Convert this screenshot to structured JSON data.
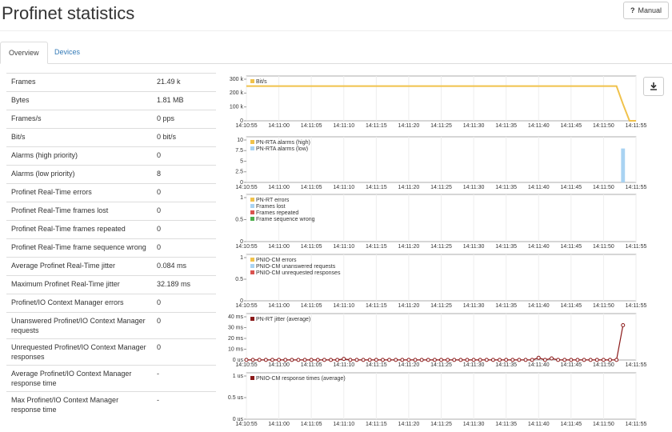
{
  "header": {
    "title": "Profinet statistics",
    "icon": "?",
    "button": "Manual"
  },
  "tabs": [
    "Overview",
    "Devices"
  ],
  "table": {
    "rows": [
      [
        "Frames",
        "21.49 k"
      ],
      [
        "Bytes",
        "1.81 MB"
      ],
      [
        "Frames/s",
        "0 pps"
      ],
      [
        "Bit/s",
        "0 bit/s"
      ],
      [
        "Alarms (high priority)",
        "0"
      ],
      [
        "Alarms (low priority)",
        "8"
      ],
      [
        "Profinet Real-Time errors",
        "0"
      ],
      [
        "Profinet Real-Time frames lost",
        "0"
      ],
      [
        "Profinet Real-Time frames repeated",
        "0"
      ],
      [
        "Profinet Real-Time frame sequence wrong",
        "0"
      ],
      [
        "Average Profinet Real-Time jitter",
        "0.084 ms"
      ],
      [
        "Maximum Profinet Real-Time jitter",
        "32.189 ms"
      ],
      [
        "Profinet/IO Context Manager errors",
        "0"
      ],
      [
        "Unanswered Profinet/IO Context Manager requests",
        "0"
      ],
      [
        "Unrequested Profinet/IO Context Manager responses",
        "0"
      ],
      [
        "Average Profinet/IO Context Manager response time",
        "-"
      ],
      [
        "Max Profinet/IO Context Manager response time",
        "-"
      ]
    ]
  },
  "time_axis": [
    "14:10:55",
    "14:11:00",
    "14:11:05",
    "14:11:10",
    "14:11:15",
    "14:11:20",
    "14:11:25",
    "14:11:30",
    "14:11:35",
    "14:11:40",
    "14:11:45",
    "14:11:50",
    "14:11:55"
  ],
  "charts": [
    {
      "type": "line",
      "ylim": [
        0,
        300000
      ],
      "yticks": [
        {
          "value": 0,
          "label": "0"
        },
        {
          "value": 100000,
          "label": "100 k"
        },
        {
          "value": 200000,
          "label": "200 k"
        },
        {
          "value": 300000,
          "label": "300 k"
        }
      ],
      "series": [
        {
          "name": "Bit/s",
          "color": "#f0c24b",
          "values": [
            250000,
            250000,
            250000,
            250000,
            250000,
            250000,
            250000,
            250000,
            250000,
            250000,
            250000,
            250000,
            250000,
            250000,
            250000,
            250000,
            250000,
            250000,
            250000,
            250000,
            250000,
            250000,
            250000,
            250000,
            250000,
            250000,
            250000,
            250000,
            250000,
            250000,
            250000,
            250000,
            250000,
            250000,
            250000,
            250000,
            250000,
            250000,
            250000,
            250000,
            250000,
            250000,
            250000,
            250000,
            250000,
            250000,
            250000,
            250000,
            250000,
            250000,
            250000,
            250000,
            250000,
            250000,
            250000,
            250000,
            250000,
            250000,
            120000,
            0,
            0
          ]
        }
      ]
    },
    {
      "type": "bar",
      "ylim": [
        0,
        10
      ],
      "yticks": [
        0,
        2.5,
        5,
        7.5,
        10
      ],
      "series": [
        {
          "name": "PN-RTA alarms (high)",
          "color": "#f0c24b",
          "values": [
            0,
            0,
            0,
            0,
            0,
            0,
            0,
            0,
            0,
            0,
            0,
            0,
            0,
            0,
            0,
            0,
            0,
            0,
            0,
            0,
            0,
            0,
            0,
            0,
            0,
            0,
            0,
            0,
            0,
            0,
            0,
            0,
            0,
            0,
            0,
            0,
            0,
            0,
            0,
            0,
            0,
            0,
            0,
            0,
            0,
            0,
            0,
            0,
            0,
            0,
            0,
            0,
            0,
            0,
            0,
            0,
            0,
            0,
            0,
            0,
            0
          ]
        },
        {
          "name": "PN-RTA alarms (low)",
          "color": "#a9d3f2",
          "values": [
            0,
            0,
            0,
            0,
            0,
            0,
            0,
            0,
            0,
            0,
            0,
            0,
            0,
            0,
            0,
            0,
            0,
            0,
            0,
            0,
            0,
            0,
            0,
            0,
            0,
            0,
            0,
            0,
            0,
            0,
            0,
            0,
            0,
            0,
            0,
            0,
            0,
            0,
            0,
            0,
            0,
            0,
            0,
            0,
            0,
            0,
            0,
            0,
            0,
            0,
            0,
            0,
            0,
            0,
            0,
            0,
            0,
            0,
            8,
            0,
            0
          ]
        }
      ]
    },
    {
      "type": "line",
      "ylim": [
        0,
        1
      ],
      "yticks": [
        0,
        0.5,
        1
      ],
      "series": [
        {
          "name": "PN-RT errors",
          "color": "#f0c24b"
        },
        {
          "name": "Frames lost",
          "color": "#a9d3f2"
        },
        {
          "name": "Frames repeated",
          "color": "#d9534f"
        },
        {
          "name": "Frame sequence wrong",
          "color": "#4cae4c"
        }
      ]
    },
    {
      "type": "line",
      "ylim": [
        0,
        1
      ],
      "yticks": [
        0,
        0.5,
        1
      ],
      "series": [
        {
          "name": "PNIO-CM errors",
          "color": "#f0c24b"
        },
        {
          "name": "PNIO-CM unanswered requests",
          "color": "#a9d3f2"
        },
        {
          "name": "PNIO-CM unrequested responses",
          "color": "#d9534f"
        }
      ]
    },
    {
      "type": "marker-line",
      "ylim": [
        0,
        40
      ],
      "yticks": [
        {
          "value": 0,
          "label": "0 us"
        },
        {
          "value": 10,
          "label": "10 ms"
        },
        {
          "value": 20,
          "label": "20 ms"
        },
        {
          "value": 30,
          "label": "30 ms"
        },
        {
          "value": 40,
          "label": "40 ms"
        }
      ],
      "series": [
        {
          "name": "PN-RT jitter (average)",
          "color": "#8b1a1a",
          "values": [
            0.1,
            0.1,
            0.1,
            0.1,
            0.1,
            0.1,
            0.1,
            0.1,
            0.1,
            0.1,
            0.1,
            0.1,
            0.1,
            0.1,
            0.1,
            1,
            0.1,
            0.1,
            0.1,
            0.1,
            0.1,
            0.1,
            0.1,
            0.1,
            0.1,
            0.1,
            0.1,
            0.1,
            0.1,
            0.1,
            0.1,
            0.1,
            0.1,
            0.1,
            0.1,
            0.1,
            0.1,
            0.1,
            0.1,
            0.1,
            0.1,
            0.1,
            0.1,
            0.1,
            0.1,
            2,
            0.1,
            1.5,
            0.1,
            0.1,
            0.1,
            0.1,
            0.1,
            0.1,
            0.1,
            0.1,
            0.1,
            0.1,
            32.2
          ]
        }
      ]
    },
    {
      "type": "line",
      "ylim": [
        0,
        1
      ],
      "yticks": [
        {
          "value": 0,
          "label": "0 us"
        },
        {
          "value": 0.5,
          "label": "0.5 us"
        },
        {
          "value": 1,
          "label": "1 us"
        }
      ],
      "series": [
        {
          "name": "PNIO-CM response times (average)",
          "color": "#8b1a1a"
        }
      ]
    }
  ]
}
